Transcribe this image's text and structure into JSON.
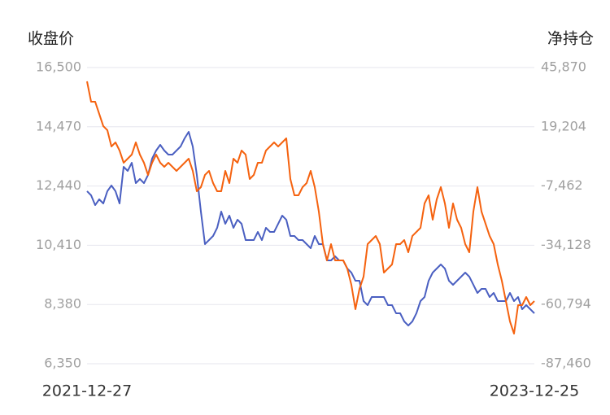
{
  "chart_data": {
    "type": "line",
    "ylabel": "收盘价",
    "y2label": "净持仓",
    "categories": [
      "2021-12-27",
      null,
      null,
      null,
      null,
      null,
      null,
      null,
      null,
      null,
      null,
      null,
      null,
      null,
      null,
      null,
      null,
      null,
      null,
      null,
      null,
      null,
      null,
      null,
      null,
      null,
      null,
      null,
      null,
      null,
      null,
      null,
      null,
      null,
      null,
      null,
      null,
      null,
      null,
      null,
      null,
      null,
      null,
      null,
      null,
      null,
      null,
      null,
      null,
      null,
      null,
      null,
      null,
      null,
      null,
      null,
      null,
      null,
      null,
      null,
      null,
      null,
      null,
      null,
      null,
      null,
      null,
      null,
      null,
      null,
      null,
      null,
      null,
      null,
      null,
      null,
      null,
      null,
      null,
      null,
      null,
      null,
      null,
      null,
      null,
      null,
      null,
      null,
      null,
      null,
      null,
      null,
      null,
      null,
      null,
      null,
      null,
      null,
      null,
      null,
      null,
      null,
      null,
      null,
      null,
      null,
      null,
      null,
      null,
      null,
      "2023-12-25"
    ],
    "series": [
      {
        "color": "#4a5fc1",
        "axis": "y",
        "values": [
          12262,
          12122,
          11787,
          11983,
          11843,
          12262,
          12457,
          12262,
          11843,
          13098,
          12959,
          13237,
          12540,
          12680,
          12540,
          12819,
          13377,
          13656,
          13851,
          13656,
          13516,
          13516,
          13656,
          13795,
          14074,
          14297,
          13795,
          12819,
          11564,
          10449,
          10588,
          10728,
          11007,
          11564,
          11146,
          11425,
          11007,
          11285,
          11146,
          10588,
          10588,
          10588,
          10867,
          10588,
          11007,
          10867,
          10867,
          11146,
          11425,
          11285,
          10728,
          10728,
          10588,
          10588,
          10449,
          10310,
          10728,
          10449,
          10449,
          9891,
          9891,
          10031,
          9891,
          9891,
          9612,
          9473,
          9194,
          9194,
          8497,
          8358,
          8636,
          8636,
          8636,
          8636,
          8358,
          8358,
          8079,
          8079,
          7800,
          7660,
          7800,
          8079,
          8497,
          8636,
          9194,
          9473,
          9612,
          9752,
          9612,
          9194,
          9055,
          9194,
          9334,
          9473,
          9334,
          9055,
          8776,
          8915,
          8915,
          8636,
          8776,
          8497,
          8497,
          8497,
          8776,
          8497,
          8636,
          8218,
          8358,
          8218,
          8079
        ]
      },
      {
        "color": "#f5620f",
        "axis": "y2",
        "values": [
          39643,
          30486,
          30486,
          24991,
          19497,
          17666,
          10340,
          12171,
          8508,
          3014,
          4846,
          6677,
          12171,
          6677,
          3014,
          -2480,
          3014,
          6677,
          3014,
          1183,
          3014,
          1183,
          -649,
          1183,
          3014,
          4846,
          -649,
          -9806,
          -7975,
          -2480,
          -649,
          -6143,
          -9806,
          -9806,
          -649,
          -6143,
          4846,
          3014,
          8508,
          6677,
          -4312,
          -2480,
          3014,
          3014,
          8508,
          10340,
          12171,
          10340,
          12171,
          14003,
          -4312,
          -11638,
          -11638,
          -7975,
          -6143,
          -649,
          -7975,
          -18963,
          -33615,
          -40941,
          -33615,
          -40941,
          -40941,
          -40941,
          -44604,
          -51929,
          -62918,
          -53761,
          -48267,
          -33615,
          -31783,
          -29952,
          -33615,
          -46435,
          -44604,
          -42772,
          -33615,
          -33615,
          -31783,
          -37278,
          -29952,
          -28121,
          -26289,
          -15300,
          -11638,
          -22626,
          -13469,
          -7975,
          -15300,
          -26289,
          -15300,
          -22626,
          -26289,
          -33615,
          -37278,
          -18963,
          -7975,
          -18963,
          -24458,
          -29952,
          -33615,
          -42772,
          -50098,
          -59255,
          -68412,
          -73907,
          -61087,
          -61087,
          -57424,
          -61087,
          -59255
        ]
      }
    ],
    "ylim": [
      6350,
      16500
    ],
    "yticks": [
      {
        "value": 6350,
        "label": "6,350"
      },
      {
        "value": 8380,
        "label": "8,380"
      },
      {
        "value": 10410,
        "label": "10,410"
      },
      {
        "value": 12440,
        "label": "12,440"
      },
      {
        "value": 14470,
        "label": "14,470"
      },
      {
        "value": 16500,
        "label": "16,500"
      }
    ],
    "y2lim": [
      -87460,
      45870
    ],
    "y2ticks": [
      {
        "value": -87460,
        "label": "-87,460"
      },
      {
        "value": -60794,
        "label": "-60,794"
      },
      {
        "value": -34128,
        "label": "-34,128"
      },
      {
        "value": -7462,
        "label": "-7,462"
      },
      {
        "value": 19204,
        "label": "19,204"
      },
      {
        "value": 45870,
        "label": "45,870"
      }
    ],
    "grid": true
  }
}
